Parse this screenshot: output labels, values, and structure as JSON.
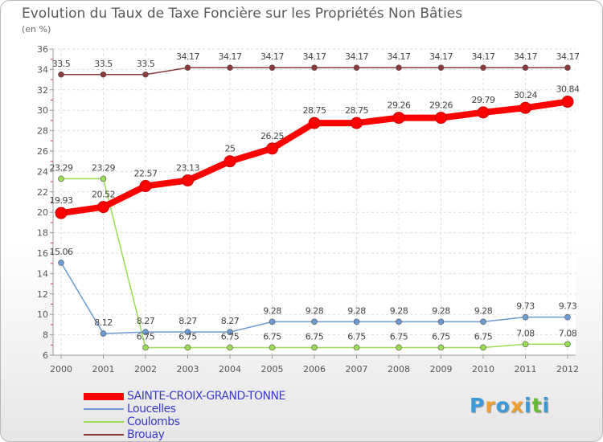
{
  "chart_data": {
    "type": "line",
    "title": "Evolution du Taux de Taxe Foncière sur les Propriétés Non Bâties",
    "ylabel": "(en %)",
    "xlabel": "",
    "ylim": [
      6,
      36
    ],
    "yticks": [
      "6",
      "8",
      "10",
      "12",
      "14",
      "16",
      "18",
      "20",
      "22",
      "24",
      "26",
      "28",
      "30",
      "32",
      "34",
      "36"
    ],
    "categories": [
      "2000",
      "2001",
      "2002",
      "2003",
      "2004",
      "2005",
      "2006",
      "2007",
      "2008",
      "2009",
      "2010",
      "2011",
      "2012"
    ],
    "series": [
      {
        "name": "SAINTE-CROIX-GRAND-TONNE",
        "color": "#ff0000",
        "values": [
          19.93,
          20.52,
          22.57,
          23.13,
          25,
          26.25,
          28.75,
          28.75,
          29.26,
          29.26,
          29.79,
          30.24,
          30.84
        ],
        "labels": [
          "19.93",
          "20.52",
          "22.57",
          "23.13",
          "25",
          "26.25",
          "28.75",
          "28.75",
          "29.26",
          "29.26",
          "29.79",
          "30.24",
          "30.84"
        ]
      },
      {
        "name": "Loucelles",
        "color": "#6b9bd1",
        "values": [
          15.06,
          8.12,
          8.27,
          8.27,
          8.27,
          9.28,
          9.28,
          9.28,
          9.28,
          9.28,
          9.28,
          9.73,
          9.73
        ],
        "labels": [
          "15.06",
          "8.12",
          "8.27",
          "8.27",
          "8.27",
          "9.28",
          "9.28",
          "9.28",
          "9.28",
          "9.28",
          "9.28",
          "9.73",
          "9.73"
        ]
      },
      {
        "name": "Coulombs",
        "color": "#99dd55",
        "values": [
          23.29,
          23.29,
          6.75,
          6.75,
          6.75,
          6.75,
          6.75,
          6.75,
          6.75,
          6.75,
          6.75,
          7.08,
          7.08
        ],
        "labels": [
          "23.29",
          "23.29",
          "6.75",
          "6.75",
          "6.75",
          "6.75",
          "6.75",
          "6.75",
          "6.75",
          "6.75",
          "6.75",
          "7.08",
          "7.08"
        ]
      },
      {
        "name": "Brouay",
        "color": "#8b3a3a",
        "values": [
          33.5,
          33.5,
          33.5,
          34.17,
          34.17,
          34.17,
          34.17,
          34.17,
          34.17,
          34.17,
          34.17,
          34.17,
          34.17
        ],
        "labels": [
          "33.5",
          "33.5",
          "33.5",
          "34.17",
          "34.17",
          "34.17",
          "34.17",
          "34.17",
          "34.17",
          "34.17",
          "34.17",
          "34.17",
          "34.17"
        ]
      }
    ]
  },
  "logo": {
    "letters": [
      "P",
      "r",
      "o",
      "x",
      "i",
      "t",
      "i"
    ],
    "colors": [
      "#3a9ad9",
      "#f0a030",
      "#3a9ad9",
      "#f0a030",
      "#3a9ad9",
      "#66bb33",
      "#3a9ad9"
    ]
  }
}
